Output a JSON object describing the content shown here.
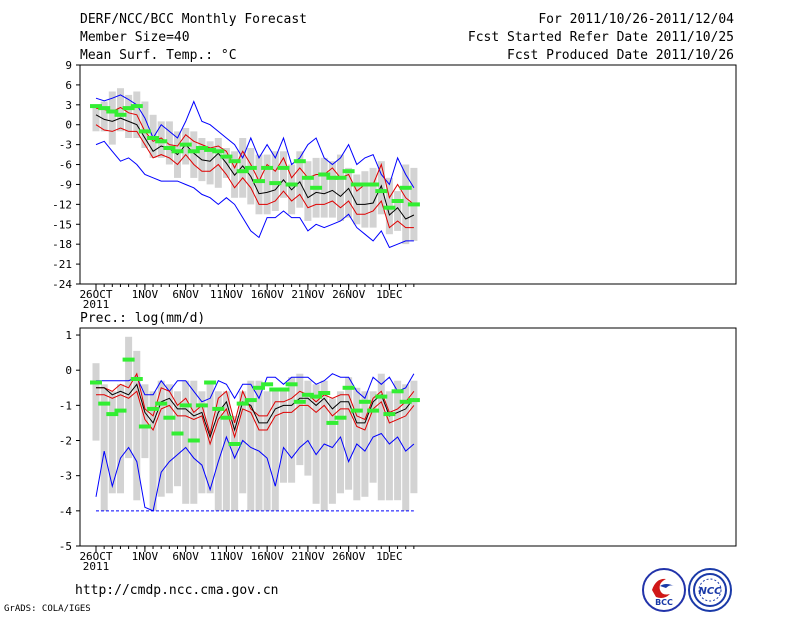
{
  "header": {
    "title": "DERF/NCC/BCC Monthly Forecast",
    "member_size": "Member Size=40",
    "variable": "Mean Surf. Temp.: °C",
    "period": "For 2011/10/26-2011/12/04",
    "started": "Fcst Started Refer Date 2011/10/25",
    "produced": "Fcst Produced Date 2011/10/26"
  },
  "footer": {
    "url": "http://cmdp.ncc.cma.gov.cn",
    "grads": "GrADS: COLA/IGES"
  },
  "logos": {
    "bcc": "BCC",
    "ncc": "NCC"
  },
  "colors": {
    "envelope": "#0000ff",
    "spread": "#e00000",
    "mean": "#000000",
    "median": "#33ee33",
    "box": "#d3d3d3"
  },
  "chart_data": [
    {
      "type": "box",
      "title": "Mean Surf. Temp.: °C",
      "ylabel": "°C",
      "ylim": [
        -24,
        9
      ],
      "yticks": [
        9,
        6,
        3,
        0,
        -3,
        -6,
        -9,
        -12,
        -15,
        -18,
        -21,
        -24
      ],
      "xticklabels": [
        "26OCT",
        "1NOV",
        "6NOV",
        "11NOV",
        "16NOV",
        "21NOV",
        "26NOV",
        "1DEC"
      ],
      "xtick_days": [
        1,
        7,
        12,
        17,
        22,
        27,
        32,
        37
      ],
      "year_label": "2011",
      "days": 40,
      "series": [
        {
          "name": "max",
          "values": [
            4,
            3.6,
            4,
            4.5,
            3.8,
            3,
            1,
            -2,
            0,
            -1,
            -2,
            0.5,
            3.5,
            0.5,
            0,
            -1,
            -2,
            -3,
            -5,
            -2,
            -5,
            -3,
            -5,
            -2,
            -6,
            -5,
            -3,
            -2,
            -5,
            -6,
            -5,
            -3,
            -6,
            -5,
            -4.5,
            -7.5,
            -9,
            -5,
            -7.5,
            -9.5
          ]
        },
        {
          "name": "upper",
          "values": [
            2.5,
            2.3,
            2,
            2.6,
            1.8,
            1.5,
            -1,
            -2.5,
            -2,
            -3,
            -3.2,
            -1.5,
            -2.5,
            -3,
            -3.5,
            -3.2,
            -4,
            -6.5,
            -4,
            -6,
            -8.5,
            -6,
            -7,
            -5,
            -8,
            -6.5,
            -8,
            -7.5,
            -7.5,
            -6.5,
            -8,
            -7.5,
            -10,
            -9,
            -9,
            -6,
            -11,
            -9,
            -11,
            -12
          ]
        },
        {
          "name": "mean",
          "values": [
            1.5,
            0.8,
            0.5,
            1,
            0.5,
            0,
            -2,
            -4,
            -3.2,
            -3.6,
            -4.5,
            -3,
            -4.3,
            -5.3,
            -5.5,
            -4.3,
            -5.8,
            -7.6,
            -6.2,
            -7.8,
            -10.4,
            -10.2,
            -9.8,
            -8.3,
            -9.8,
            -8.6,
            -11,
            -10.2,
            -10.4,
            -9.9,
            -10.8,
            -9.6,
            -12,
            -12,
            -11.8,
            -9.2,
            -13.6,
            -12.5,
            -14.2,
            -13.6
          ]
        },
        {
          "name": "lower",
          "values": [
            0,
            -0.8,
            -1,
            -0.5,
            -1,
            -1,
            -3,
            -5,
            -4.5,
            -5,
            -6,
            -4.5,
            -6,
            -7,
            -7,
            -6,
            -7.5,
            -9.5,
            -8,
            -9.5,
            -12,
            -12,
            -11.5,
            -10,
            -11.5,
            -10.5,
            -12.5,
            -12,
            -12,
            -11.5,
            -12.5,
            -11.5,
            -13.5,
            -13.5,
            -13,
            -11.5,
            -15.5,
            -14.5,
            -15.5,
            -15.5
          ]
        },
        {
          "name": "min",
          "values": [
            -3,
            -2.5,
            -4,
            -5.5,
            -5,
            -6,
            -7.5,
            -8,
            -8.5,
            -8.5,
            -8.5,
            -9,
            -9.5,
            -10.5,
            -11,
            -12,
            -11,
            -12,
            -14,
            -16,
            -17,
            -14,
            -14,
            -13,
            -14,
            -14,
            -16,
            -15,
            -15.5,
            -15,
            -14.5,
            -13.5,
            -15.5,
            -16.5,
            -17.5,
            -16,
            -18.5,
            -18,
            -17.5,
            -17.5
          ]
        },
        {
          "name": "median",
          "values": [
            2.8,
            2.5,
            2,
            1.5,
            2.5,
            2.8,
            -1,
            -2,
            -2.5,
            -3.5,
            -4,
            -3,
            -4,
            -3.5,
            -3.8,
            -4,
            -4.8,
            -5.5,
            -7,
            -6.5,
            -8.5,
            -6.5,
            -8.8,
            -6.5,
            -9,
            -5.5,
            -8,
            -9.5,
            -7.5,
            -8,
            -8,
            -7,
            -9,
            -9,
            -9,
            -10,
            -12.5,
            -11.5,
            -9.5,
            -12
          ]
        },
        {
          "name": "box_high",
          "values": [
            3,
            3.5,
            5,
            5.5,
            4.5,
            5,
            3.5,
            1.5,
            0.5,
            0.5,
            -1,
            -0.5,
            -1,
            -2,
            -2.5,
            -2,
            -3.5,
            -4,
            -2,
            -3.5,
            -4.5,
            -4.5,
            -4,
            -4,
            -6,
            -4,
            -5.5,
            -5,
            -5,
            -5.5,
            -4.5,
            -6.5,
            -7.5,
            -7,
            -6.5,
            -5.5,
            -8,
            -10,
            -6,
            -6.5
          ]
        },
        {
          "name": "box_low",
          "values": [
            -1,
            -1,
            -3,
            -1,
            -2,
            -2,
            -3.5,
            -5,
            -5,
            -6,
            -8,
            -6,
            -8,
            -8.5,
            -9,
            -9.5,
            -8,
            -11,
            -11,
            -12,
            -13.5,
            -13.5,
            -13,
            -11,
            -13.5,
            -12.5,
            -14.5,
            -14,
            -14,
            -14,
            -14.5,
            -14,
            -15,
            -15.5,
            -15.5,
            -13.5,
            -16.5,
            -16,
            -18,
            -17.5
          ]
        }
      ]
    },
    {
      "type": "box",
      "title": "Prec.: log(mm/d)",
      "ylabel": "log(mm/d)",
      "ylim": [
        -5,
        1.2
      ],
      "yticks": [
        1,
        0,
        -1,
        -2,
        -3,
        -4,
        -5
      ],
      "xticklabels": [
        "26OCT",
        "1NOV",
        "6NOV",
        "11NOV",
        "16NOV",
        "21NOV",
        "26NOV",
        "1DEC"
      ],
      "xtick_days": [
        1,
        7,
        12,
        17,
        22,
        27,
        32,
        37
      ],
      "year_label": "2011",
      "days": 40,
      "series": [
        {
          "name": "max",
          "values": [
            -0.3,
            -0.3,
            -0.3,
            -0.3,
            -0.3,
            -0.2,
            -0.7,
            -0.7,
            -0.3,
            -0.6,
            -0.3,
            -0.3,
            -0.6,
            -0.9,
            -0.8,
            -0.3,
            -0.4,
            -0.8,
            -0.4,
            -0.4,
            -0.8,
            -0.2,
            -0.2,
            -0.4,
            -0.2,
            -0.2,
            -0.2,
            -0.4,
            -0.3,
            -0.1,
            -0.2,
            -0.2,
            -0.6,
            -0.8,
            -0.2,
            -0.4,
            -0.2,
            -0.6,
            -0.5,
            -0.1
          ]
        },
        {
          "name": "upper",
          "values": [
            -0.5,
            -0.5,
            -0.6,
            -0.4,
            -0.5,
            -0.1,
            -1.1,
            -1.3,
            -0.5,
            -0.6,
            -1,
            -0.8,
            -1.2,
            -1,
            -1.8,
            -0.8,
            -0.6,
            -1.5,
            -0.6,
            -1.1,
            -1.3,
            -1.3,
            -0.9,
            -0.9,
            -0.8,
            -0.6,
            -0.7,
            -0.9,
            -0.7,
            -0.8,
            -0.7,
            -0.7,
            -1.3,
            -1.4,
            -0.8,
            -0.6,
            -1.2,
            -1.1,
            -0.9,
            -0.6
          ]
        },
        {
          "name": "mean",
          "values": [
            -0.5,
            -0.5,
            -0.7,
            -0.6,
            -0.7,
            -0.4,
            -1.2,
            -1.5,
            -0.9,
            -0.8,
            -1.1,
            -1.1,
            -1.3,
            -1.2,
            -1.9,
            -1.2,
            -0.9,
            -1.7,
            -0.9,
            -1,
            -1.5,
            -1.5,
            -1.1,
            -1,
            -1,
            -0.8,
            -0.8,
            -1,
            -0.8,
            -1.1,
            -0.9,
            -0.9,
            -1.5,
            -1.5,
            -0.9,
            -0.7,
            -1.3,
            -1.2,
            -1.1,
            -0.8
          ]
        },
        {
          "name": "lower",
          "values": [
            -0.7,
            -0.7,
            -0.8,
            -0.7,
            -0.8,
            -0.6,
            -1.4,
            -1.7,
            -1.1,
            -1,
            -1.3,
            -1.3,
            -1.4,
            -1.3,
            -2.1,
            -1.4,
            -1.1,
            -1.9,
            -1.1,
            -1.2,
            -1.7,
            -1.7,
            -1.3,
            -1.2,
            -1.2,
            -1,
            -1,
            -1.2,
            -1,
            -1.3,
            -1.1,
            -1.1,
            -1.6,
            -1.7,
            -1.1,
            -0.9,
            -1.5,
            -1.4,
            -1.3,
            -1
          ]
        },
        {
          "name": "min",
          "values": [
            -3.6,
            -2.3,
            -3.3,
            -2.5,
            -2.2,
            -2.6,
            -3.9,
            -4,
            -2.9,
            -2.6,
            -2.4,
            -2.2,
            -2.5,
            -2.7,
            -3.4,
            -2.6,
            -1.9,
            -2.5,
            -2,
            -2.2,
            -2.3,
            -2.5,
            -3.3,
            -2.2,
            -2.5,
            -2.2,
            -2,
            -2.4,
            -2.1,
            -2.2,
            -1.9,
            -2.6,
            -2.1,
            -2.3,
            -1.9,
            -1.8,
            -2.1,
            -1.9,
            -2.3,
            -2.1
          ]
        },
        {
          "name": "median",
          "values": [
            -0.35,
            -0.95,
            -1.25,
            -1.15,
            0.3,
            -0.25,
            -1.6,
            -1.1,
            -0.95,
            -1.35,
            -1.8,
            -1,
            -2,
            -1,
            -0.35,
            -1.1,
            -1.35,
            -2.1,
            -0.95,
            -0.85,
            -0.5,
            -0.4,
            -0.55,
            -0.55,
            -0.4,
            -0.9,
            -0.7,
            -0.75,
            -0.65,
            -1.5,
            -1.35,
            -0.5,
            -1.15,
            -0.9,
            -1.15,
            -0.75,
            -1.25,
            -0.6,
            -0.9,
            -0.85
          ]
        },
        {
          "name": "box_high",
          "values": [
            0.2,
            -0.4,
            -0.6,
            -0.4,
            0.95,
            0.55,
            -0.4,
            -0.6,
            -0.3,
            -0.4,
            -0.6,
            -0.3,
            -0.3,
            -0.6,
            -0.4,
            -0.6,
            -0.6,
            -1.3,
            -0.6,
            -0.3,
            -0.3,
            -0.6,
            -0.6,
            -0.5,
            -0.2,
            -0.1,
            -0.3,
            -0.4,
            -0.3,
            -0.8,
            -0.6,
            -0.2,
            -0.5,
            -0.6,
            -0.6,
            -0.1,
            -0.6,
            -0.3,
            -0.4,
            -0.3
          ]
        },
        {
          "name": "box_low",
          "values": [
            -2,
            -4,
            -3.5,
            -3.5,
            -2.5,
            -3.7,
            -2.5,
            -4,
            -3.6,
            -3.5,
            -3.3,
            -3.8,
            -3.8,
            -3.5,
            -3.5,
            -4,
            -4,
            -4,
            -3.5,
            -4,
            -4,
            -4,
            -4,
            -3.2,
            -3.2,
            -2.7,
            -3,
            -3.8,
            -4,
            -3.8,
            -3.5,
            -3.4,
            -3.7,
            -3.6,
            -3.2,
            -3.7,
            -3.7,
            -3.7,
            -4,
            -3.5
          ]
        }
      ],
      "reference_line": -4
    }
  ]
}
